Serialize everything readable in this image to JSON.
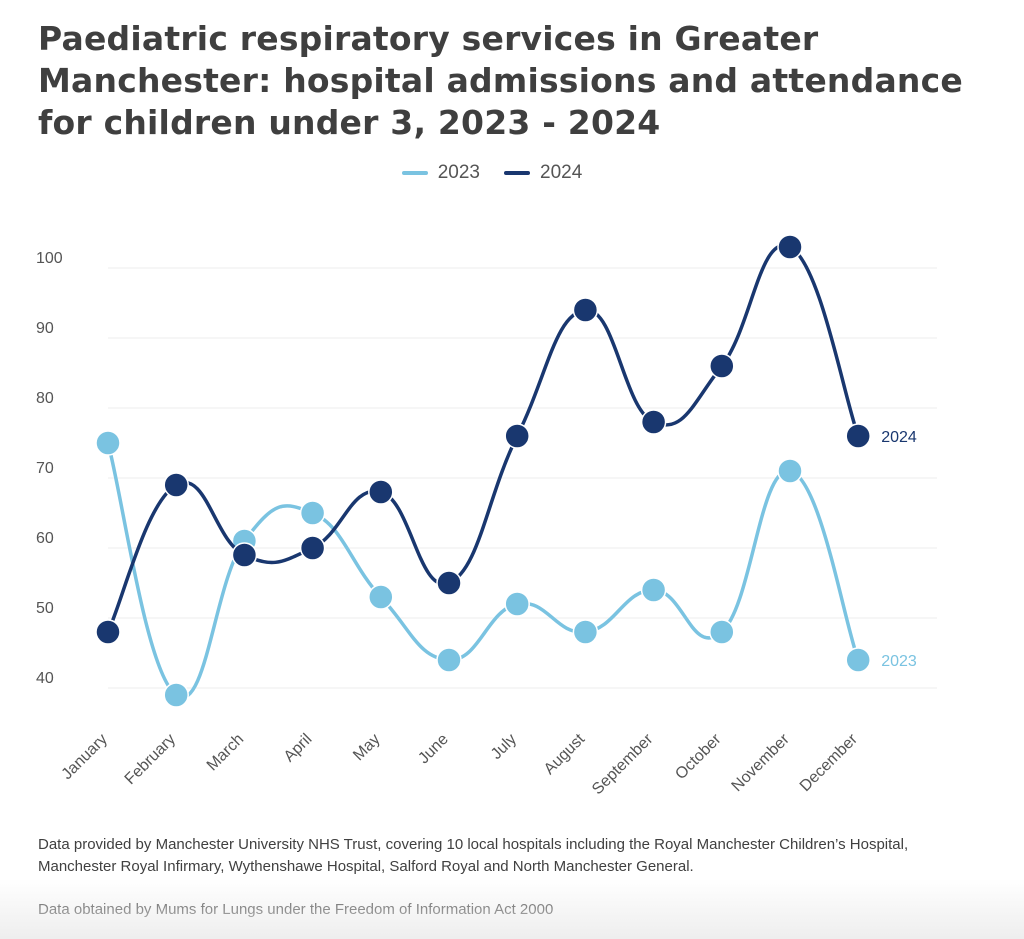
{
  "title": "Paediatric respiratory services in Greater Manchester: hospital admissions and attendance for children under 3, 2023 - 2024",
  "colors": {
    "s2023": "#7ac3e1",
    "s2024": "#19376f",
    "grid": "#eeeeee",
    "tick": "#555555"
  },
  "chart_data": {
    "type": "line",
    "categories": [
      "January",
      "February",
      "March",
      "April",
      "May",
      "June",
      "July",
      "August",
      "September",
      "October",
      "November",
      "December"
    ],
    "series": [
      {
        "name": "2023",
        "values": [
          75,
          39,
          61,
          65,
          53,
          44,
          52,
          48,
          54,
          48,
          71,
          44
        ],
        "end_label": "2023"
      },
      {
        "name": "2024",
        "values": [
          48,
          69,
          59,
          60,
          68,
          55,
          76,
          94,
          78,
          86,
          103,
          76
        ],
        "end_label": "2024"
      }
    ],
    "yticks": [
      40,
      50,
      60,
      70,
      80,
      90,
      100
    ],
    "ylim": [
      35,
      105
    ],
    "grid": true,
    "legend": "top-center"
  },
  "footnotes": {
    "line1": "Data provided by Manchester University NHS Trust, covering 10 local hospitals including the Royal Manchester Children’s Hospital, Manchester Royal Infirmary, Wythenshawe Hospital, Salford Royal and North Manchester General.",
    "line2": "Data obtained by Mums for Lungs under the Freedom of Information Act 2000"
  }
}
